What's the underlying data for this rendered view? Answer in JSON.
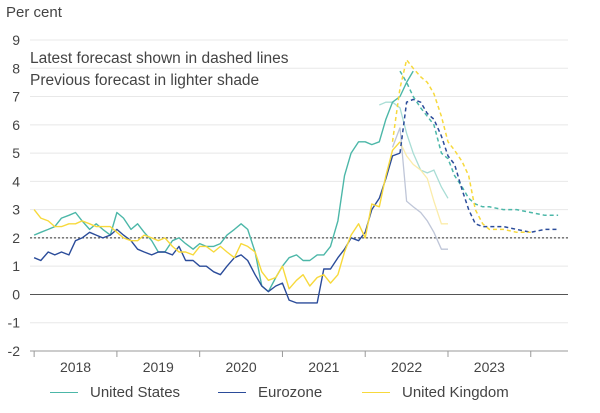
{
  "chart_data": {
    "type": "line",
    "unit_label": "Per cent",
    "annotations": [
      "Latest forecast shown in dashed lines",
      "Previous forecast in lighter shade"
    ],
    "yticks": [
      9,
      8,
      7,
      6,
      5,
      4,
      3,
      2,
      1,
      0,
      -1,
      -2
    ],
    "ylim": [
      -2,
      9
    ],
    "xlim": [
      2017.45,
      2023.95
    ],
    "xticks": [
      {
        "label": "2018",
        "x": 2018
      },
      {
        "label": "2019",
        "x": 2019
      },
      {
        "label": "2020",
        "x": 2020
      },
      {
        "label": "2021",
        "x": 2021
      },
      {
        "label": "2022",
        "x": 2022
      },
      {
        "label": "2023",
        "x": 2023
      }
    ],
    "target_line": 2,
    "grid": true,
    "legend_position": "bottom",
    "series": [
      {
        "name": "United States",
        "color": "#4cb7a8",
        "light_color": "#a9ddd5",
        "actual": {
          "x": [
            2017.5,
            2017.58,
            2017.67,
            2017.75,
            2017.83,
            2017.92,
            2018.0,
            2018.08,
            2018.17,
            2018.25,
            2018.33,
            2018.42,
            2018.5,
            2018.58,
            2018.67,
            2018.75,
            2018.83,
            2018.92,
            2019.0,
            2019.08,
            2019.17,
            2019.25,
            2019.33,
            2019.42,
            2019.5,
            2019.58,
            2019.67,
            2019.75,
            2019.83,
            2019.92,
            2020.0,
            2020.08,
            2020.17,
            2020.25,
            2020.33,
            2020.42,
            2020.5,
            2020.58,
            2020.67,
            2020.75,
            2020.83,
            2020.92,
            2021.0,
            2021.08,
            2021.17,
            2021.25,
            2021.33,
            2021.42,
            2021.5,
            2021.58,
            2021.67,
            2021.75,
            2021.83,
            2021.92,
            2022.0,
            2022.08,
            2022.17,
            2022.25,
            2022.33,
            2022.42,
            2022.5,
            2022.58,
            2022.67,
            2022.75,
            2022.83,
            2022.92,
            2023.0
          ],
          "y": [
            2.1,
            2.2,
            2.3,
            2.4,
            2.7,
            2.8,
            2.9,
            2.6,
            2.3,
            2.5,
            2.3,
            2.1,
            2.9,
            2.7,
            2.3,
            2.5,
            2.2,
            1.9,
            1.5,
            1.5,
            1.9,
            2.0,
            1.8,
            1.6,
            1.8,
            1.7,
            1.7,
            1.8,
            2.1,
            2.3,
            2.5,
            2.3,
            1.5,
            0.3,
            0.1,
            0.6,
            1.0,
            1.3,
            1.4,
            1.2,
            1.2,
            1.4,
            1.4,
            1.7,
            2.6,
            4.2,
            5.0,
            5.4,
            5.4,
            5.3,
            5.4,
            6.2,
            6.8,
            7.0,
            7.5,
            7.9,
            null,
            null,
            null,
            null,
            null,
            null,
            null,
            null,
            null,
            null,
            null
          ]
        },
        "previous_forecast": {
          "x": [
            2021.67,
            2021.75,
            2021.83,
            2021.92,
            2022.0,
            2022.08,
            2022.17,
            2022.25,
            2022.33,
            2022.42,
            2022.5
          ],
          "y": [
            6.7,
            6.8,
            6.8,
            6.6,
            5.7,
            5.0,
            4.4,
            4.3,
            4.4,
            3.8,
            3.4
          ]
        },
        "latest_forecast": {
          "x": [
            2021.92,
            2022.0,
            2022.08,
            2022.17,
            2022.25,
            2022.33,
            2022.42,
            2022.5,
            2022.58,
            2022.67,
            2022.75,
            2022.83,
            2022.92,
            2023.0,
            2023.17,
            2023.33,
            2023.5,
            2023.67,
            2023.83
          ],
          "y": [
            7.9,
            7.5,
            7.0,
            6.6,
            6.3,
            6.0,
            5.0,
            4.8,
            4.2,
            3.8,
            3.4,
            3.2,
            3.1,
            3.1,
            3.0,
            3.0,
            2.9,
            2.8,
            2.8
          ]
        }
      },
      {
        "name": "Eurozone",
        "color": "#2b4c9a",
        "light_color": "#bfc6d8",
        "actual": {
          "x": [
            2017.5,
            2017.58,
            2017.67,
            2017.75,
            2017.83,
            2017.92,
            2018.0,
            2018.08,
            2018.17,
            2018.25,
            2018.33,
            2018.42,
            2018.5,
            2018.58,
            2018.67,
            2018.75,
            2018.83,
            2018.92,
            2019.0,
            2019.08,
            2019.17,
            2019.25,
            2019.33,
            2019.42,
            2019.5,
            2019.58,
            2019.67,
            2019.75,
            2019.83,
            2019.92,
            2020.0,
            2020.08,
            2020.17,
            2020.25,
            2020.33,
            2020.42,
            2020.5,
            2020.58,
            2020.67,
            2020.75,
            2020.83,
            2020.92,
            2021.0,
            2021.08,
            2021.17,
            2021.25,
            2021.33,
            2021.42,
            2021.5,
            2021.58,
            2021.67,
            2021.75,
            2021.83,
            2021.92
          ],
          "y": [
            1.3,
            1.2,
            1.5,
            1.4,
            1.5,
            1.4,
            1.9,
            2.0,
            2.2,
            2.1,
            2.0,
            2.1,
            2.3,
            2.1,
            1.9,
            1.6,
            1.5,
            1.4,
            1.5,
            1.5,
            1.4,
            1.7,
            1.2,
            1.2,
            1.0,
            1.0,
            0.8,
            0.7,
            1.0,
            1.3,
            1.4,
            1.2,
            0.7,
            0.3,
            0.1,
            0.3,
            0.4,
            -0.2,
            -0.3,
            -0.3,
            -0.3,
            -0.3,
            0.9,
            0.9,
            1.3,
            1.6,
            2.0,
            1.9,
            2.2,
            3.0,
            3.4,
            4.1,
            4.9,
            5.0
          ]
        },
        "previous_forecast": {
          "x": [
            2021.83,
            2021.92,
            2022.0,
            2022.08,
            2022.17,
            2022.25,
            2022.33,
            2022.42,
            2022.5
          ],
          "y": [
            5.2,
            5.9,
            3.3,
            3.1,
            2.9,
            2.6,
            2.2,
            1.6,
            1.6
          ]
        },
        "latest_forecast": {
          "x": [
            2021.92,
            2022.0,
            2022.08,
            2022.17,
            2022.25,
            2022.33,
            2022.42,
            2022.5,
            2022.58,
            2022.67,
            2022.75,
            2022.83,
            2022.92,
            2023.0,
            2023.17,
            2023.33,
            2023.5,
            2023.67,
            2023.83
          ],
          "y": [
            5.0,
            6.8,
            6.9,
            6.8,
            6.4,
            6.2,
            5.6,
            4.9,
            4.6,
            3.7,
            3.0,
            2.5,
            2.4,
            2.4,
            2.4,
            2.3,
            2.2,
            2.3,
            2.3
          ]
        }
      },
      {
        "name": "United Kingdom",
        "color": "#f7d93c",
        "light_color": "#fbecaa",
        "actual": {
          "x": [
            2017.5,
            2017.58,
            2017.67,
            2017.75,
            2017.83,
            2017.92,
            2018.0,
            2018.08,
            2018.17,
            2018.25,
            2018.33,
            2018.42,
            2018.5,
            2018.58,
            2018.67,
            2018.75,
            2018.83,
            2018.92,
            2019.0,
            2019.08,
            2019.17,
            2019.25,
            2019.33,
            2019.42,
            2019.5,
            2019.58,
            2019.67,
            2019.75,
            2019.83,
            2019.92,
            2020.0,
            2020.08,
            2020.17,
            2020.25,
            2020.33,
            2020.42,
            2020.5,
            2020.58,
            2020.67,
            2020.75,
            2020.83,
            2020.92,
            2021.0,
            2021.08,
            2021.17,
            2021.25,
            2021.33,
            2021.42,
            2021.5,
            2021.58,
            2021.67,
            2021.75,
            2021.83,
            2021.92
          ],
          "y": [
            3.0,
            2.7,
            2.6,
            2.4,
            2.4,
            2.5,
            2.5,
            2.6,
            2.5,
            2.4,
            2.4,
            2.4,
            2.2,
            2.0,
            1.9,
            1.9,
            2.1,
            2.0,
            1.9,
            2.0,
            1.7,
            1.5,
            1.5,
            1.4,
            1.7,
            1.7,
            1.5,
            1.7,
            1.5,
            1.3,
            1.8,
            1.7,
            1.5,
            0.8,
            0.5,
            0.6,
            1.0,
            0.2,
            0.5,
            0.7,
            0.3,
            0.6,
            0.7,
            0.4,
            0.7,
            1.5,
            2.1,
            2.5,
            2.0,
            3.2,
            3.1,
            4.2,
            5.1,
            5.4
          ]
        },
        "previous_forecast": {
          "x": [
            2021.92,
            2022.0,
            2022.08,
            2022.17,
            2022.25,
            2022.33,
            2022.42,
            2022.5
          ],
          "y": [
            5.4,
            4.9,
            4.6,
            4.4,
            4.1,
            3.3,
            2.5,
            2.5
          ]
        },
        "latest_forecast": {
          "x": [
            2021.83,
            2021.92,
            2022.0,
            2022.08,
            2022.17,
            2022.25,
            2022.33,
            2022.42,
            2022.5,
            2022.58,
            2022.67,
            2022.75,
            2022.83,
            2022.92,
            2023.0,
            2023.17,
            2023.33,
            2023.5
          ],
          "y": [
            5.4,
            7.3,
            8.3,
            8.0,
            7.7,
            7.5,
            7.1,
            6.3,
            5.4,
            5.1,
            4.7,
            4.2,
            3.0,
            2.5,
            2.3,
            2.3,
            2.2,
            2.2
          ]
        }
      }
    ]
  }
}
